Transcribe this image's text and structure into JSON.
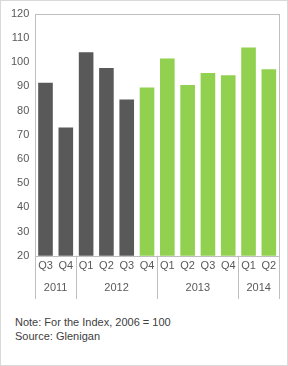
{
  "chart_data": {
    "type": "bar",
    "categories": [
      "Q3",
      "Q4",
      "Q1",
      "Q2",
      "Q3",
      "Q4",
      "Q1",
      "Q2",
      "Q3",
      "Q4",
      "Q1",
      "Q2"
    ],
    "groups": [
      {
        "name": "2011",
        "count": 2
      },
      {
        "name": "2012",
        "count": 4
      },
      {
        "name": "2013",
        "count": 4
      },
      {
        "name": "2014",
        "count": 2
      }
    ],
    "values": [
      91.5,
      73,
      104,
      97.5,
      84.5,
      89.5,
      101.5,
      90.5,
      95.5,
      94.5,
      106,
      97
    ],
    "colors": [
      "#595959",
      "#595959",
      "#595959",
      "#595959",
      "#595959",
      "#92d050",
      "#92d050",
      "#92d050",
      "#92d050",
      "#92d050",
      "#92d050",
      "#92d050"
    ],
    "ylim": [
      20,
      120
    ],
    "yticks": [
      20,
      30,
      40,
      50,
      60,
      70,
      80,
      90,
      100,
      110,
      120
    ],
    "grid": false,
    "notes": [
      "Note: For the Index, 2006 = 100",
      "Source: Glenigan"
    ]
  }
}
